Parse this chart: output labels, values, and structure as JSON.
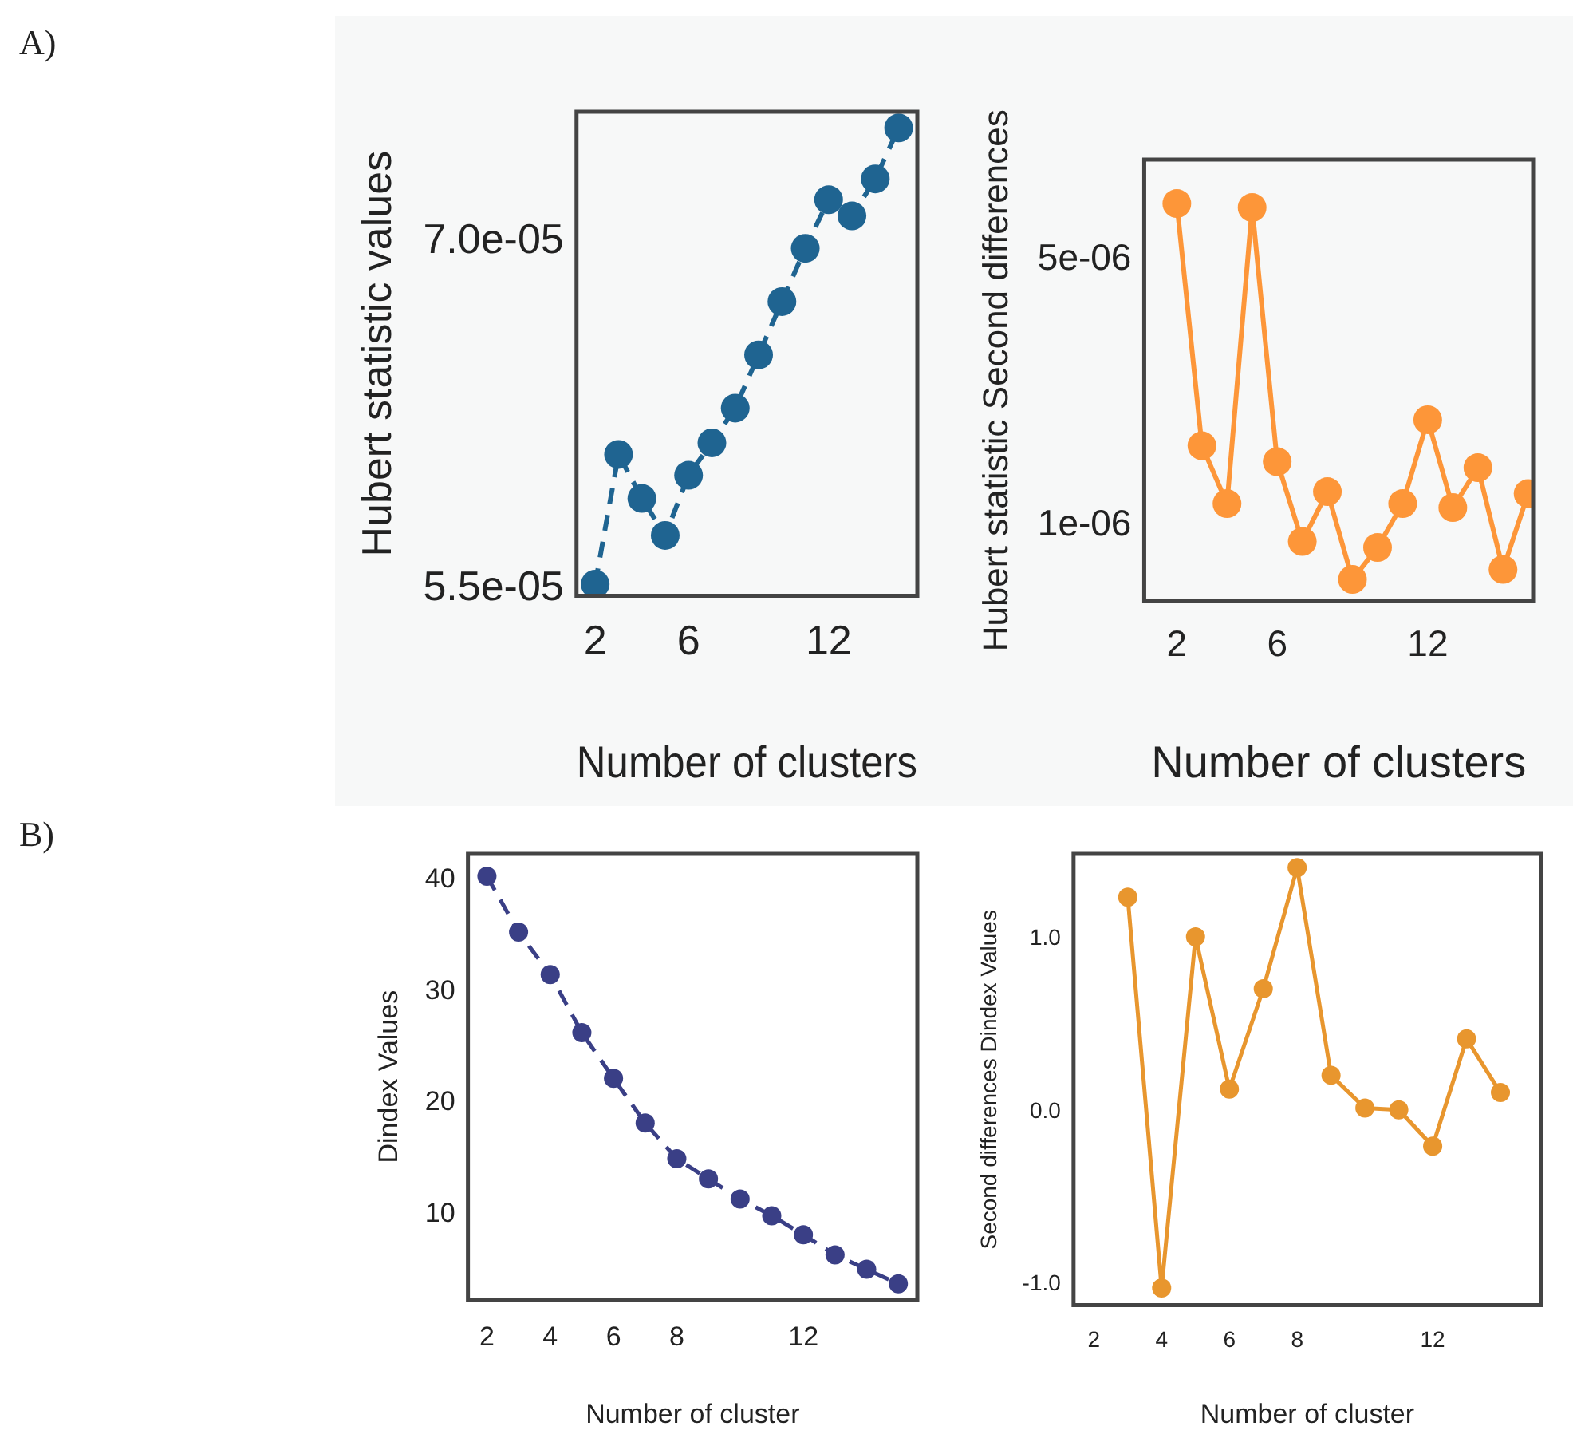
{
  "chart_data": [
    {
      "type": "line",
      "annotations": [
        "A)"
      ],
      "xlabel": "Number of clusters",
      "ylabel": "Hubert statistic values",
      "x": [
        2,
        3,
        4,
        5,
        6,
        7,
        8,
        9,
        10,
        11,
        12,
        13,
        14,
        15
      ],
      "series": [
        {
          "color": "#1f6491",
          "values": [
            5.52e-05,
            6.08e-05,
            5.89e-05,
            5.73e-05,
            5.99e-05,
            6.13e-05,
            6.28e-05,
            6.51e-05,
            6.74e-05,
            6.97e-05,
            7.18e-05,
            7.11e-05,
            7.27e-05,
            7.49e-05
          ]
        }
      ],
      "xlim": [
        1.2,
        15.8
      ],
      "xticks": [
        2,
        6,
        12
      ],
      "ylim": [
        5.47e-05,
        7.56e-05
      ],
      "yticks": [
        {
          "value": 5.5e-05,
          "label": "5.5e-05"
        },
        {
          "value": 7e-05,
          "label": "7.0e-05"
        }
      ],
      "marker": "circle",
      "line_style": "dashed",
      "grid": false,
      "legend": false
    },
    {
      "type": "line",
      "xlabel": "Number of clusters",
      "ylabel": "Hubert statistic Second differences",
      "x": [
        2,
        3,
        4,
        5,
        6,
        7,
        8,
        9,
        10,
        11,
        12,
        13,
        14,
        15,
        16
      ],
      "series": [
        {
          "color": "#fd9639",
          "values": [
            5.84e-06,
            2.2e-06,
            1.33e-06,
            5.78e-06,
            1.96e-06,
            7.6e-07,
            1.51e-06,
            1.9e-07,
            6.7e-07,
            1.33e-06,
            2.59e-06,
            1.27e-06,
            1.87e-06,
            3.4e-07,
            1.48e-06
          ]
        }
      ],
      "xlim": [
        0.7,
        16.2
      ],
      "xticks": [
        2,
        6,
        12
      ],
      "ylim": [
        -1.4e-07,
        6.5e-06
      ],
      "yticks": [
        {
          "value": 1e-06,
          "label": "1e-06"
        },
        {
          "value": 5e-06,
          "label": "5e-06"
        }
      ],
      "marker": "circle",
      "line_style": "solid",
      "grid": false,
      "legend": false
    },
    {
      "type": "line",
      "annotations": [
        "B)"
      ],
      "xlabel": "Number of cluster",
      "ylabel": "Dindex Values",
      "x": [
        2,
        3,
        4,
        5,
        6,
        7,
        8,
        9,
        10,
        11,
        12,
        13,
        14,
        15
      ],
      "series": [
        {
          "color": "#3a3f86",
          "values": [
            40.3,
            35.3,
            31.5,
            26.3,
            22.2,
            18.2,
            15.0,
            13.2,
            11.4,
            9.9,
            8.2,
            6.4,
            5.1,
            3.8
          ]
        }
      ],
      "xlim": [
        1.4,
        15.6
      ],
      "xticks": [
        2,
        4,
        6,
        8,
        12
      ],
      "ylim": [
        2.4,
        42.3
      ],
      "yticks": [
        10,
        20,
        30,
        40
      ],
      "marker": "circle",
      "line_style": "dashed",
      "grid": false,
      "legend": false
    },
    {
      "type": "line",
      "xlabel": "Number of cluster",
      "ylabel": "Second differences Dindex Values",
      "x": [
        3,
        4,
        5,
        6,
        7,
        8,
        9,
        10,
        11,
        12,
        13,
        14
      ],
      "series": [
        {
          "color": "#e8962e",
          "values": [
            1.24,
            -1.02,
            1.01,
            0.13,
            0.71,
            1.41,
            0.21,
            0.02,
            0.01,
            -0.2,
            0.42,
            0.11
          ]
        }
      ],
      "xlim": [
        1.4,
        15.2
      ],
      "xticks": [
        2,
        4,
        6,
        8,
        12
      ],
      "ylim": [
        -1.12,
        1.49
      ],
      "yticks": [
        {
          "value": -1,
          "label": "-1.0"
        },
        {
          "value": 0,
          "label": "0.0"
        },
        {
          "value": 1,
          "label": "1.0"
        }
      ],
      "marker": "circle",
      "line_style": "solid",
      "grid": false,
      "legend": false
    }
  ]
}
